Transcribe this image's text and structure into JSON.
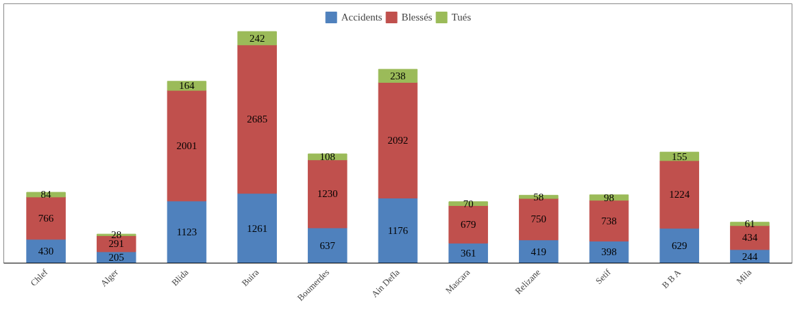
{
  "chart_data": {
    "type": "bar",
    "stacked": true,
    "data_labels": true,
    "legend": "top",
    "grid": false,
    "categories": [
      "Chlef",
      "Alger",
      "Blida",
      "Buira",
      "Boumerdes",
      "Ain Defla",
      "Mascara",
      "Relizane",
      "Setif",
      "B B A",
      "Mila"
    ],
    "series": [
      {
        "name": "Accidents",
        "color": "#4f81bd",
        "values": [
          430,
          205,
          1123,
          1261,
          637,
          1176,
          361,
          419,
          398,
          629,
          244
        ]
      },
      {
        "name": "Blessés",
        "color": "#c0504d",
        "values": [
          766,
          291,
          2001,
          2685,
          1230,
          2092,
          679,
          750,
          738,
          1224,
          434
        ]
      },
      {
        "name": "Tués",
        "color": "#9bbb59",
        "values": [
          84,
          28,
          164,
          242,
          108,
          238,
          70,
          58,
          98,
          155,
          61
        ]
      }
    ]
  }
}
